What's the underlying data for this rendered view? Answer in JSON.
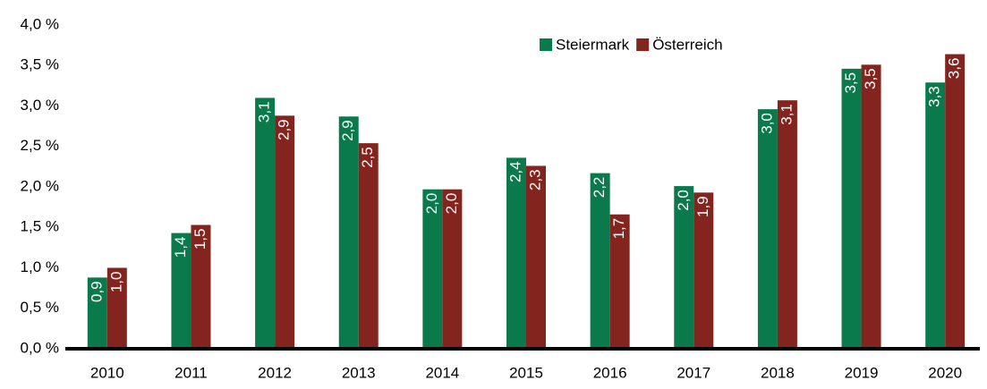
{
  "chart_data": {
    "type": "bar",
    "categories": [
      "2010",
      "2011",
      "2012",
      "2013",
      "2014",
      "2015",
      "2016",
      "2017",
      "2018",
      "2019",
      "2020"
    ],
    "series": [
      {
        "name": "Steiermark",
        "color": "#0a7a4d",
        "values": [
          0.88,
          1.43,
          3.1,
          2.87,
          1.97,
          2.36,
          2.17,
          2.01,
          2.96,
          3.46,
          3.29
        ],
        "value_labels": [
          "0,9",
          "1,4",
          "3,1",
          "2,9",
          "2,0",
          "2,4",
          "2,2",
          "2,0",
          "3,0",
          "3,5",
          "3,3"
        ]
      },
      {
        "name": "Österreich",
        "color": "#84241f",
        "values": [
          1.0,
          1.53,
          2.88,
          2.54,
          1.97,
          2.26,
          1.66,
          1.93,
          3.07,
          3.51,
          3.64
        ],
        "value_labels": [
          "1,0",
          "1,5",
          "2,9",
          "2,5",
          "2,0",
          "2,3",
          "1,7",
          "1,9",
          "3,1",
          "3,5",
          "3,6"
        ]
      }
    ],
    "ylim": [
      0,
      4
    ],
    "yticks": [
      {
        "value": 0,
        "label": "0,0 %"
      },
      {
        "value": 0.5,
        "label": "0,5 %"
      },
      {
        "value": 1,
        "label": "1,0 %"
      },
      {
        "value": 1.5,
        "label": "1,5 %"
      },
      {
        "value": 2,
        "label": "2,0 %"
      },
      {
        "value": 2.5,
        "label": "2,5 %"
      },
      {
        "value": 3,
        "label": "3,0 %"
      },
      {
        "value": 3.5,
        "label": "3,5 %"
      },
      {
        "value": 4,
        "label": "4,0 %"
      }
    ],
    "legend": "top"
  }
}
